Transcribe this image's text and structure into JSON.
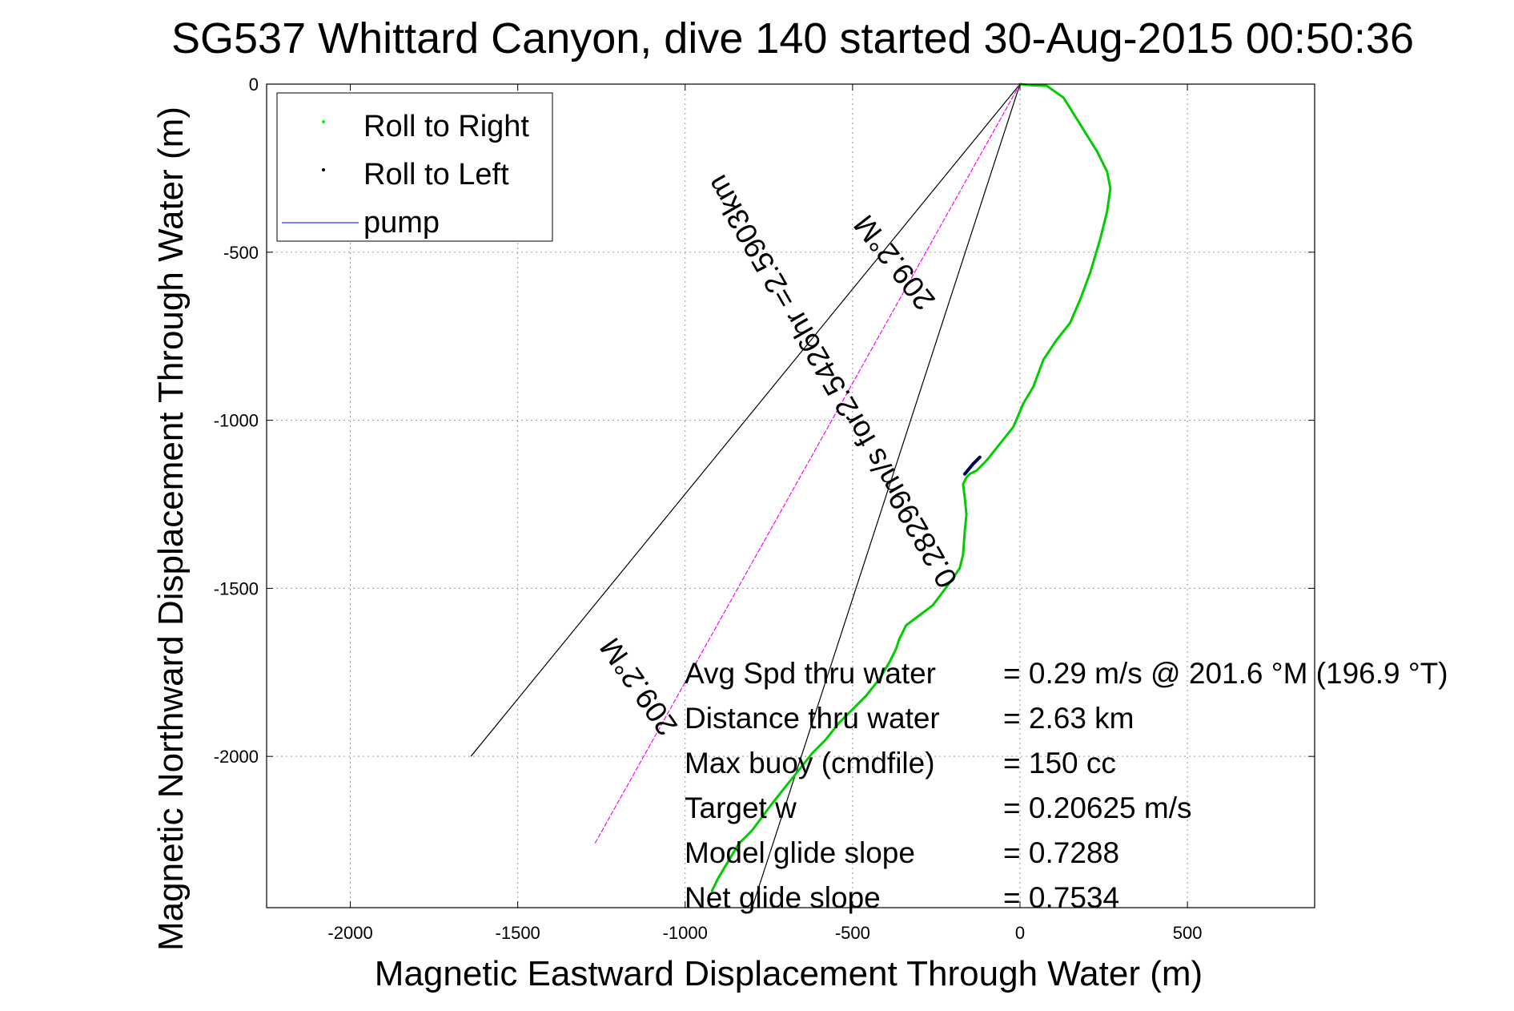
{
  "chart_data": {
    "type": "line",
    "title": "SG537 Whittard Canyon, dive 140 started 30-Aug-2015 00:50:36",
    "xlabel": "Magnetic Eastward Displacement Through Water (m)",
    "ylabel": "Magnetic Northward Displacement Through Water (m)",
    "xlim": [
      -2250,
      880
    ],
    "ylim": [
      -2450,
      0
    ],
    "xticks": [
      -2000,
      -1500,
      -1000,
      -500,
      0,
      500
    ],
    "yticks": [
      0,
      -500,
      -1000,
      -1500,
      -2000
    ],
    "xtick_labels": [
      "-2000",
      "-1500",
      "-1000",
      "-500",
      "0",
      "500"
    ],
    "ytick_labels": [
      "0",
      "-500",
      "-1000",
      "-1500",
      "-2000"
    ],
    "grid": true,
    "legend_position": "top-left",
    "legend": [
      {
        "label": "Roll to Right",
        "color": "#00ff00",
        "marker": "dot"
      },
      {
        "label": "Roll to Left",
        "color": "#000000",
        "marker": "dot"
      },
      {
        "label": "pump",
        "color": "#0000ff",
        "marker": "line"
      }
    ],
    "series": [
      {
        "name": "Roll to Right",
        "color": "#00cc00",
        "x": [
          0,
          30,
          80,
          130,
          180,
          230,
          260,
          270,
          260,
          240,
          210,
          180,
          150,
          110,
          70,
          40,
          10,
          -20,
          -60,
          -100,
          -130,
          -150,
          -160,
          -170,
          -165,
          -160,
          -165,
          -170,
          -180,
          -200,
          -230,
          -260,
          -300,
          -340,
          -360,
          -370,
          -390,
          -420,
          -460,
          -500,
          -540,
          -580,
          -620,
          -660,
          -700,
          -740,
          -770,
          -800,
          -840,
          -870,
          -900,
          -920
        ],
        "y": [
          0,
          -3,
          -5,
          -40,
          -120,
          -200,
          -260,
          -310,
          -380,
          -460,
          -560,
          -640,
          -710,
          -760,
          -820,
          -900,
          -950,
          -1020,
          -1070,
          -1120,
          -1150,
          -1160,
          -1170,
          -1190,
          -1230,
          -1280,
          -1330,
          -1400,
          -1440,
          -1470,
          -1510,
          -1550,
          -1580,
          -1610,
          -1650,
          -1680,
          -1720,
          -1770,
          -1820,
          -1860,
          -1900,
          -1950,
          -1990,
          -2040,
          -2090,
          -2140,
          -2180,
          -2220,
          -2260,
          -2310,
          -2360,
          -2400
        ]
      },
      {
        "name": "Roll to Left",
        "color": "#000055",
        "x": [
          -165,
          -140,
          -120
        ],
        "y": [
          -1160,
          -1130,
          -1110
        ]
      }
    ],
    "heading_lines": [
      {
        "x": [
          0,
          -1640
        ],
        "y": [
          0,
          -2000
        ],
        "color": "#000000"
      },
      {
        "x": [
          0,
          -800
        ],
        "y": [
          0,
          -2450
        ],
        "color": "#000000"
      },
      {
        "x": [
          0,
          -1270
        ],
        "y": [
          0,
          -2260
        ],
        "color": "#ff00ff",
        "dashed": true
      }
    ],
    "annotations": {
      "heading_top": "209.2°M",
      "heading_bottom": "209.2°M",
      "speed_note": "0.28299m/s for2.5426hr =2.5903km"
    },
    "stats": [
      {
        "label": "Avg Spd thru water",
        "value": "=  0.29 m/s @ 201.6 °M (196.9 °T)"
      },
      {
        "label": "Distance thru water",
        "value": "=  2.63 km"
      },
      {
        "label": "Max buoy (cmdfile)",
        "value": "= 150 cc"
      },
      {
        "label": "Target w",
        "value": "= 0.20625 m/s"
      },
      {
        "label": "Model glide slope",
        "value": "= 0.7288"
      },
      {
        "label": "Net glide slope",
        "value": "= 0.7534"
      }
    ]
  }
}
